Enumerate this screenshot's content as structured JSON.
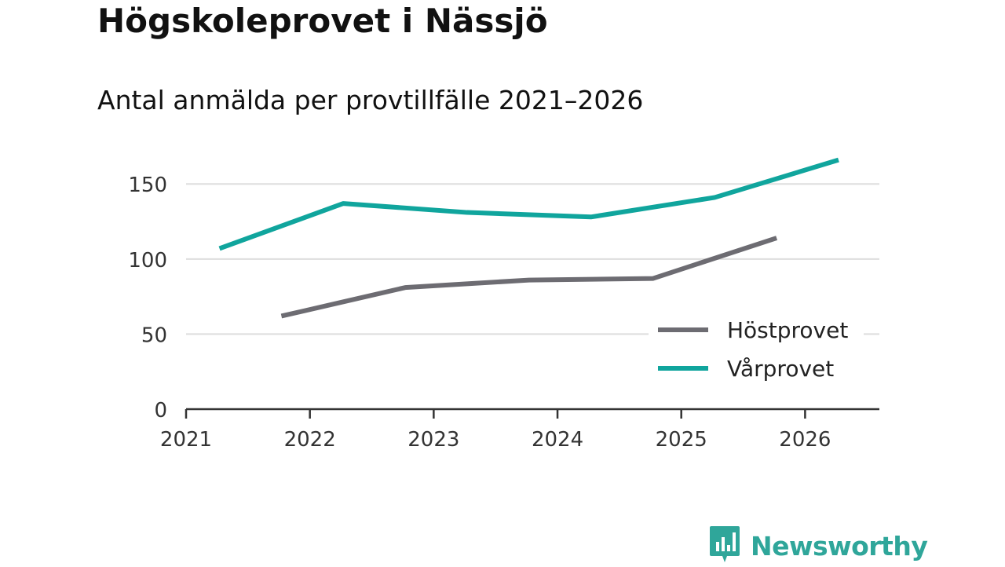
{
  "colors": {
    "hostprovet": "#6d6c72",
    "varprovet": "#10a59d",
    "grid": "#dddddd",
    "axis": "#333333",
    "brand": "#2fa69a"
  },
  "brand": {
    "name": "Newsworthy",
    "icon": "newsworthy-logo-icon"
  },
  "chart_data": {
    "type": "line",
    "title": "Högskoleprovet i Nässjö",
    "subtitle": "Antal anmälda per provtillfälle 2021–2026",
    "xlabel": "",
    "ylabel": "",
    "xlim": [
      2021,
      2026.6
    ],
    "ylim": [
      0,
      170
    ],
    "yticks": [
      0,
      50,
      100,
      150
    ],
    "xticks": [
      "2021",
      "2022",
      "2023",
      "2024",
      "2025",
      "2026"
    ],
    "grid": true,
    "legend_position": "bottom-right",
    "series": [
      {
        "name": "Höstprovet",
        "color": "#6d6c72",
        "x": [
          2021.77,
          2022.77,
          2023.77,
          2024.77,
          2025.77
        ],
        "values": [
          62,
          81,
          86,
          87,
          114
        ]
      },
      {
        "name": "Vårprovet",
        "color": "#10a59d",
        "x": [
          2021.27,
          2022.27,
          2023.27,
          2024.27,
          2025.27,
          2026.27
        ],
        "values": [
          107,
          137,
          131,
          128,
          141,
          166
        ]
      }
    ]
  }
}
